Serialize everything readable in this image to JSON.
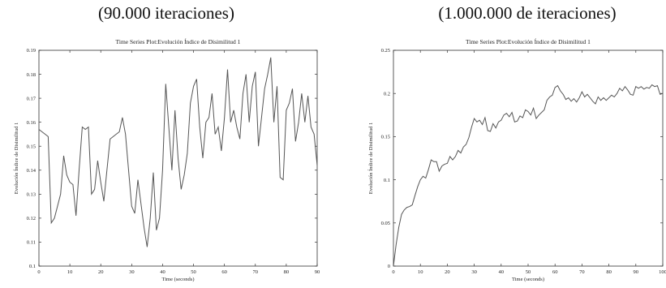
{
  "captions": {
    "left": "(90.000 iteraciones)",
    "right": "(1.000.000 de iteraciones)"
  },
  "chart_data": [
    {
      "type": "line",
      "title": "Time Series Plot:Evolución Índice de Disimilitud 1",
      "xlabel": "Time (seconds)",
      "ylabel": "Evolución Índice de Disimilitud 1",
      "xlim": [
        0,
        90
      ],
      "ylim": [
        0.1,
        0.19
      ],
      "xticks": [
        0,
        10,
        20,
        30,
        40,
        50,
        60,
        70,
        80,
        90
      ],
      "yticks": [
        0.1,
        0.11,
        0.12,
        0.13,
        0.14,
        0.15,
        0.16,
        0.17,
        0.18,
        0.19
      ],
      "grid": false,
      "series": [
        {
          "x": [
            0,
            1,
            2,
            3,
            4,
            5,
            6,
            7,
            8,
            9,
            10,
            11,
            12,
            13,
            14,
            15,
            16,
            17,
            18,
            19,
            20,
            21,
            22,
            23,
            24,
            25,
            26,
            27,
            28,
            29,
            30,
            31,
            32,
            33,
            34,
            35,
            36,
            37,
            38,
            39,
            40,
            41,
            42,
            43,
            44,
            45,
            46,
            47,
            48,
            49,
            50,
            51,
            52,
            53,
            54,
            55,
            56,
            57,
            58,
            59,
            60,
            61,
            62,
            63,
            64,
            65,
            66,
            67,
            68,
            69,
            70,
            71,
            72,
            73,
            74,
            75,
            76,
            77,
            78,
            79,
            80,
            81,
            82,
            83,
            84,
            85,
            86,
            87,
            88,
            89,
            90
          ],
          "y": [
            0.157,
            0.156,
            0.155,
            0.154,
            0.118,
            0.12,
            0.125,
            0.13,
            0.146,
            0.138,
            0.135,
            0.134,
            0.121,
            0.14,
            0.158,
            0.157,
            0.158,
            0.13,
            0.132,
            0.144,
            0.135,
            0.127,
            0.14,
            0.153,
            0.154,
            0.155,
            0.156,
            0.162,
            0.155,
            0.14,
            0.125,
            0.122,
            0.136,
            0.126,
            0.116,
            0.108,
            0.12,
            0.139,
            0.115,
            0.12,
            0.14,
            0.176,
            0.158,
            0.14,
            0.165,
            0.145,
            0.132,
            0.138,
            0.147,
            0.168,
            0.175,
            0.178,
            0.158,
            0.145,
            0.16,
            0.162,
            0.172,
            0.155,
            0.158,
            0.148,
            0.162,
            0.182,
            0.16,
            0.165,
            0.158,
            0.153,
            0.172,
            0.18,
            0.16,
            0.175,
            0.181,
            0.15,
            0.162,
            0.174,
            0.18,
            0.187,
            0.16,
            0.175,
            0.137,
            0.136,
            0.165,
            0.168,
            0.174,
            0.152,
            0.16,
            0.172,
            0.16,
            0.171,
            0.158,
            0.155,
            0.142
          ]
        }
      ]
    },
    {
      "type": "line",
      "title": "Time Series Plot:Evolución Índice de Disimilitud 1",
      "xlabel": "Time (seconds)",
      "ylabel": "Evolución Índice de Disimilitud 1",
      "xlim": [
        0,
        100
      ],
      "ylim": [
        0,
        0.25
      ],
      "xticks": [
        0,
        10,
        20,
        30,
        40,
        50,
        60,
        70,
        80,
        90,
        100
      ],
      "yticks": [
        0,
        0.05,
        0.1,
        0.15,
        0.2,
        0.25
      ],
      "grid": false,
      "series": [
        {
          "x": [
            0,
            1,
            2,
            3,
            4,
            5,
            6,
            7,
            8,
            9,
            10,
            11,
            12,
            13,
            14,
            15,
            16,
            17,
            18,
            19,
            20,
            21,
            22,
            23,
            24,
            25,
            26,
            27,
            28,
            29,
            30,
            31,
            32,
            33,
            34,
            35,
            36,
            37,
            38,
            39,
            40,
            41,
            42,
            43,
            44,
            45,
            46,
            47,
            48,
            49,
            50,
            51,
            52,
            53,
            54,
            55,
            56,
            57,
            58,
            59,
            60,
            61,
            62,
            63,
            64,
            65,
            66,
            67,
            68,
            69,
            70,
            71,
            72,
            73,
            74,
            75,
            76,
            77,
            78,
            79,
            80,
            81,
            82,
            83,
            84,
            85,
            86,
            87,
            88,
            89,
            90,
            91,
            92,
            93,
            94,
            95,
            96,
            97,
            98,
            99,
            100
          ],
          "y": [
            0.0,
            0.025,
            0.045,
            0.06,
            0.065,
            0.068,
            0.069,
            0.071,
            0.082,
            0.092,
            0.1,
            0.104,
            0.102,
            0.112,
            0.123,
            0.121,
            0.121,
            0.11,
            0.116,
            0.118,
            0.119,
            0.127,
            0.123,
            0.127,
            0.134,
            0.131,
            0.138,
            0.141,
            0.149,
            0.161,
            0.171,
            0.167,
            0.169,
            0.164,
            0.172,
            0.157,
            0.156,
            0.165,
            0.16,
            0.167,
            0.169,
            0.175,
            0.177,
            0.173,
            0.178,
            0.167,
            0.168,
            0.174,
            0.172,
            0.181,
            0.179,
            0.175,
            0.183,
            0.171,
            0.175,
            0.178,
            0.181,
            0.192,
            0.196,
            0.198,
            0.207,
            0.209,
            0.203,
            0.199,
            0.193,
            0.195,
            0.191,
            0.194,
            0.19,
            0.195,
            0.202,
            0.196,
            0.199,
            0.195,
            0.191,
            0.188,
            0.196,
            0.192,
            0.195,
            0.192,
            0.195,
            0.198,
            0.196,
            0.2,
            0.206,
            0.203,
            0.208,
            0.204,
            0.199,
            0.198,
            0.208,
            0.206,
            0.208,
            0.205,
            0.207,
            0.206,
            0.21,
            0.208,
            0.209,
            0.199,
            0.2
          ]
        }
      ]
    }
  ]
}
